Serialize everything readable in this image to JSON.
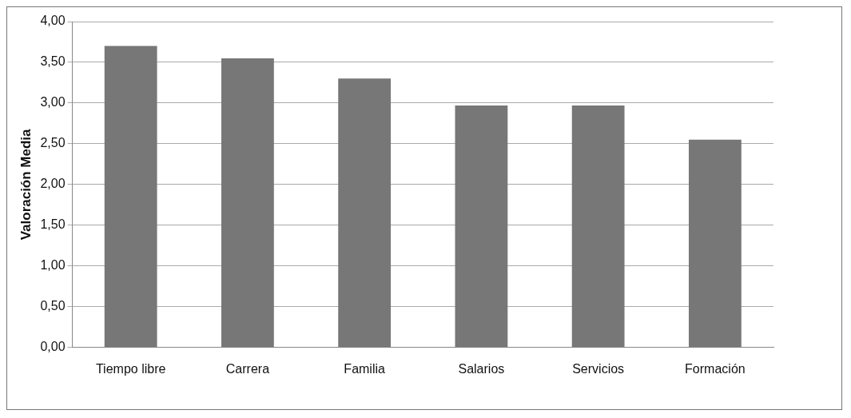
{
  "chart_data": {
    "type": "bar",
    "ylabel": "Valoración Media",
    "categories": [
      "Tiempo libre",
      "Carrera",
      "Familia",
      "Salarios",
      "Servicios",
      "Formación"
    ],
    "values": [
      3.7,
      3.55,
      3.3,
      2.97,
      2.97,
      2.55
    ],
    "color": "#777777",
    "ylim": [
      0,
      4
    ],
    "yticks": [
      {
        "value": 0,
        "label": "0,00"
      },
      {
        "value": 0.5,
        "label": "0,50"
      },
      {
        "value": 1,
        "label": "1,00"
      },
      {
        "value": 1.5,
        "label": "1,50"
      },
      {
        "value": 2,
        "label": "2,00"
      },
      {
        "value": 2.5,
        "label": "2,50"
      },
      {
        "value": 3,
        "label": "3,00"
      },
      {
        "value": 3.5,
        "label": "3,50"
      },
      {
        "value": 4,
        "label": "4,00"
      }
    ],
    "grid": "y",
    "legend": false
  }
}
